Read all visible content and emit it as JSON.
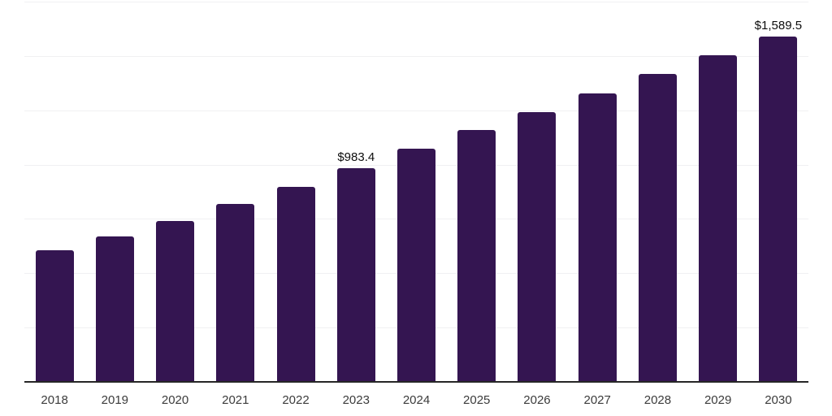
{
  "chart_data": {
    "type": "bar",
    "categories": [
      "2018",
      "2019",
      "2020",
      "2021",
      "2022",
      "2023",
      "2024",
      "2025",
      "2026",
      "2027",
      "2028",
      "2029",
      "2030"
    ],
    "values": [
      604,
      671,
      741,
      820,
      896,
      983.4,
      1074,
      1158,
      1241,
      1327,
      1416,
      1503,
      1589.5
    ],
    "annotations": [
      {
        "category": "2023",
        "text": "$983.4"
      },
      {
        "category": "2030",
        "text": "$1,589.5"
      }
    ],
    "title": "",
    "xlabel": "",
    "ylabel": "",
    "ylim": [
      0,
      1750
    ],
    "gridline_interval": 250,
    "grid": "horizontal-only",
    "legend": "none",
    "y_axis_tick_labels": "none",
    "colors": {
      "bar": "#341551",
      "background": "#ffffff",
      "gridline": "#f0f0f2",
      "axis_line": "#262626",
      "tick_label": "#3b3b3b",
      "data_label": "#0d0d0d"
    }
  }
}
